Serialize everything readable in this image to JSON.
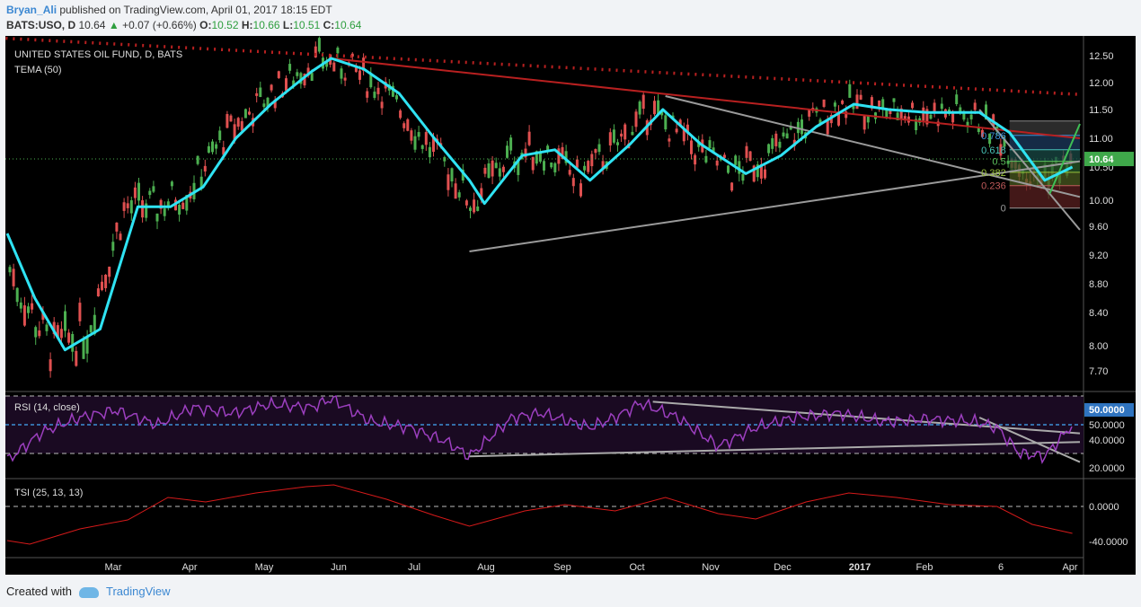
{
  "header": {
    "author": "Bryan_Ali",
    "published_text": "published on TradingView.com, April 01, 2017 18:15 EDT",
    "symbol": "BATS:USO, D",
    "last": "10.64",
    "change": "+0.07 (+0.66%)",
    "open_label": "O:",
    "open": "10.52",
    "high_label": "H:",
    "high": "10.66",
    "low_label": "L:",
    "low": "10.51",
    "close_label": "C:",
    "close": "10.64"
  },
  "footer": {
    "created_with": "Created with",
    "brand": "TradingView"
  },
  "colors": {
    "background": "#000000",
    "up": "#4caf50",
    "down": "#e05050",
    "tema": "#2fe3f3",
    "rsi": "#9c3fbf",
    "tsi": "#d61a1a",
    "trend_red": "#b82020",
    "trend_gray": "#9a9a9a",
    "trend_green": "#3fbf55"
  },
  "chart_data": [
    {
      "type": "candlestick",
      "title": "UNITED STATES OIL FUND, D, BATS",
      "indicator_label": "TEMA (50)",
      "x_labels": [
        "Mar",
        "Apr",
        "May",
        "Jun",
        "Jul",
        "Aug",
        "Sep",
        "Oct",
        "Nov",
        "Dec",
        "2017",
        "Feb",
        "6",
        "Apr"
      ],
      "y_ticks": [
        "12.50",
        "12.00",
        "11.50",
        "11.00",
        "10.50",
        "10.00",
        "9.60",
        "9.20",
        "8.80",
        "8.40",
        "8.00",
        "7.70"
      ],
      "ylim": [
        7.4,
        12.8
      ],
      "last_price_label": "10.64",
      "tema_points": [
        {
          "x": "2016-02-01",
          "y": 9.5
        },
        {
          "x": "2016-02-12",
          "y": 8.6
        },
        {
          "x": "2016-02-24",
          "y": 7.95
        },
        {
          "x": "2016-03-09",
          "y": 8.2
        },
        {
          "x": "2016-03-24",
          "y": 9.9
        },
        {
          "x": "2016-04-06",
          "y": 9.9
        },
        {
          "x": "2016-04-19",
          "y": 10.2
        },
        {
          "x": "2016-05-02",
          "y": 11.0
        },
        {
          "x": "2016-05-16",
          "y": 11.6
        },
        {
          "x": "2016-06-01",
          "y": 12.2
        },
        {
          "x": "2016-06-09",
          "y": 12.45
        },
        {
          "x": "2016-06-22",
          "y": 12.25
        },
        {
          "x": "2016-07-06",
          "y": 11.8
        },
        {
          "x": "2016-07-20",
          "y": 11.0
        },
        {
          "x": "2016-08-03",
          "y": 10.3
        },
        {
          "x": "2016-08-09",
          "y": 9.95
        },
        {
          "x": "2016-08-24",
          "y": 10.7
        },
        {
          "x": "2016-09-06",
          "y": 10.8
        },
        {
          "x": "2016-09-20",
          "y": 10.3
        },
        {
          "x": "2016-10-06",
          "y": 10.9
        },
        {
          "x": "2016-10-19",
          "y": 11.5
        },
        {
          "x": "2016-11-03",
          "y": 10.9
        },
        {
          "x": "2016-11-21",
          "y": 10.4
        },
        {
          "x": "2016-12-05",
          "y": 10.7
        },
        {
          "x": "2016-12-19",
          "y": 11.2
        },
        {
          "x": "2017-01-03",
          "y": 11.6
        },
        {
          "x": "2017-01-17",
          "y": 11.5
        },
        {
          "x": "2017-02-01",
          "y": 11.45
        },
        {
          "x": "2017-02-22",
          "y": 11.45
        },
        {
          "x": "2017-03-06",
          "y": 11.1
        },
        {
          "x": "2017-03-20",
          "y": 10.3
        },
        {
          "x": "2017-03-31",
          "y": 10.5
        }
      ],
      "fib_levels": [
        {
          "label": "0.786",
          "value": 11.05,
          "color": "#3d8fd6"
        },
        {
          "label": "0.618",
          "value": 10.8,
          "color": "#48c4b8"
        },
        {
          "label": "0.5",
          "value": 10.6,
          "color": "#5cc05c"
        },
        {
          "label": "0.382",
          "value": 10.42,
          "color": "#9ac43c"
        },
        {
          "label": "0.236",
          "value": 10.22,
          "color": "#c05a5a"
        },
        {
          "label": "0",
          "value": 9.88,
          "color": "#9a9a9a"
        }
      ]
    },
    {
      "type": "line",
      "title": "RSI (14, close)",
      "y_ticks": [
        "50.0000",
        "40.0000",
        "20.0000"
      ],
      "current_label": "50.0000",
      "points": [
        {
          "x": "2016-02-01",
          "y": 25
        },
        {
          "x": "2016-02-15",
          "y": 45
        },
        {
          "x": "2016-03-01",
          "y": 55
        },
        {
          "x": "2016-03-15",
          "y": 60
        },
        {
          "x": "2016-04-01",
          "y": 50
        },
        {
          "x": "2016-04-15",
          "y": 62
        },
        {
          "x": "2016-05-01",
          "y": 58
        },
        {
          "x": "2016-05-15",
          "y": 64
        },
        {
          "x": "2016-06-01",
          "y": 62
        },
        {
          "x": "2016-06-09",
          "y": 68
        },
        {
          "x": "2016-06-25",
          "y": 52
        },
        {
          "x": "2016-07-10",
          "y": 48
        },
        {
          "x": "2016-07-25",
          "y": 38
        },
        {
          "x": "2016-08-03",
          "y": 28
        },
        {
          "x": "2016-08-20",
          "y": 55
        },
        {
          "x": "2016-09-01",
          "y": 58
        },
        {
          "x": "2016-09-20",
          "y": 48
        },
        {
          "x": "2016-10-01",
          "y": 56
        },
        {
          "x": "2016-10-10",
          "y": 65
        },
        {
          "x": "2016-10-25",
          "y": 55
        },
        {
          "x": "2016-11-10",
          "y": 35
        },
        {
          "x": "2016-11-25",
          "y": 48
        },
        {
          "x": "2016-12-10",
          "y": 55
        },
        {
          "x": "2016-12-28",
          "y": 58
        },
        {
          "x": "2017-01-15",
          "y": 52
        },
        {
          "x": "2017-02-01",
          "y": 54
        },
        {
          "x": "2017-02-20",
          "y": 52
        },
        {
          "x": "2017-03-01",
          "y": 48
        },
        {
          "x": "2017-03-10",
          "y": 30
        },
        {
          "x": "2017-03-20",
          "y": 28
        },
        {
          "x": "2017-03-31",
          "y": 50
        }
      ]
    },
    {
      "type": "line",
      "title": "TSI (25, 13, 13)",
      "y_ticks": [
        "0.0000",
        "-40.0000"
      ],
      "points": [
        {
          "x": "2016-02-01",
          "y": -38
        },
        {
          "x": "2016-02-10",
          "y": -42
        },
        {
          "x": "2016-03-01",
          "y": -25
        },
        {
          "x": "2016-03-20",
          "y": -15
        },
        {
          "x": "2016-04-05",
          "y": 10
        },
        {
          "x": "2016-04-20",
          "y": 5
        },
        {
          "x": "2016-05-10",
          "y": 15
        },
        {
          "x": "2016-05-30",
          "y": 22
        },
        {
          "x": "2016-06-10",
          "y": 24
        },
        {
          "x": "2016-07-01",
          "y": 8
        },
        {
          "x": "2016-07-20",
          "y": -10
        },
        {
          "x": "2016-08-03",
          "y": -22
        },
        {
          "x": "2016-08-25",
          "y": -5
        },
        {
          "x": "2016-09-10",
          "y": 2
        },
        {
          "x": "2016-09-30",
          "y": -5
        },
        {
          "x": "2016-10-20",
          "y": 10
        },
        {
          "x": "2016-11-10",
          "y": -8
        },
        {
          "x": "2016-11-25",
          "y": -14
        },
        {
          "x": "2016-12-15",
          "y": 5
        },
        {
          "x": "2017-01-01",
          "y": 15
        },
        {
          "x": "2017-01-20",
          "y": 10
        },
        {
          "x": "2017-02-10",
          "y": 2
        },
        {
          "x": "2017-03-01",
          "y": 0
        },
        {
          "x": "2017-03-15",
          "y": -20
        },
        {
          "x": "2017-03-31",
          "y": -30
        }
      ]
    }
  ]
}
